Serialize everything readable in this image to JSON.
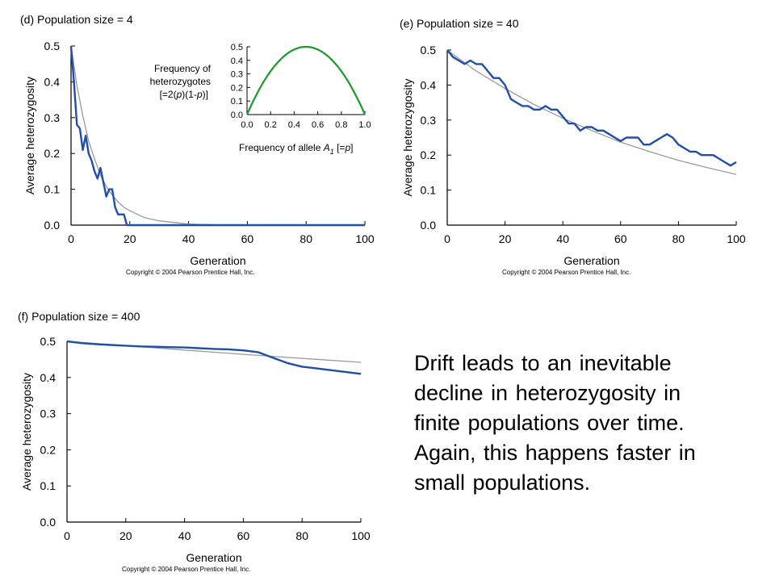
{
  "colors": {
    "sim_line": "#1f4fa8",
    "expected_curve": "#9a9a9a",
    "inset_curve": "#1a9a2a",
    "axis": "#000000"
  },
  "caption": {
    "lines": [
      "Drift leads to an inevitable",
      "decline in heterozygosity in",
      "finite populations over time.",
      "Again, this happens faster in",
      "small populations."
    ]
  },
  "chart_data": [
    {
      "id": "d",
      "type": "line",
      "title": "(d) Population size = 4",
      "xlabel": "Generation",
      "ylabel": "Average heterozygosity",
      "copyright": "Copyright © 2004 Pearson Prentice Hall, Inc.",
      "xlim": [
        0,
        100
      ],
      "ylim": [
        0,
        0.5
      ],
      "xticks": [
        "0",
        "20",
        "40",
        "60",
        "80",
        "100"
      ],
      "yticks": [
        "0.0",
        "0.1",
        "0.2",
        "0.3",
        "0.4",
        "0.5"
      ],
      "series": [
        {
          "role": "expected",
          "x": [
            0,
            2,
            4,
            6,
            8,
            10,
            12,
            14,
            16,
            18,
            20,
            25,
            30,
            40,
            50,
            60,
            80,
            100
          ],
          "y": [
            0.5,
            0.389,
            0.305,
            0.235,
            0.185,
            0.14,
            0.108,
            0.084,
            0.065,
            0.05,
            0.04,
            0.021,
            0.012,
            0.003,
            0.001,
            0.0,
            0.0,
            0.0
          ]
        },
        {
          "role": "simulated",
          "x": [
            0,
            1,
            2,
            3,
            4,
            5,
            6,
            7,
            8,
            9,
            10,
            11,
            12,
            13,
            14,
            15,
            16,
            17,
            18,
            19,
            20,
            100
          ],
          "y": [
            0.5,
            0.4,
            0.28,
            0.27,
            0.21,
            0.25,
            0.2,
            0.18,
            0.15,
            0.13,
            0.16,
            0.12,
            0.08,
            0.1,
            0.1,
            0.05,
            0.03,
            0.03,
            0.03,
            0.0,
            0.0,
            0.0
          ]
        }
      ],
      "inset": {
        "type": "line",
        "ylabel": "Frequency of heterozygotes",
        "formula_parts": [
          "[=2(",
          "p",
          ")(1-",
          "p",
          ")]"
        ],
        "xlabel_text": "Frequency of allele ",
        "xlabel_sym": "A",
        "xlabel_sub": "1",
        "xlabel_tail_parts": [
          " [=",
          "p",
          "]"
        ],
        "xlim": [
          0,
          1
        ],
        "ylim": [
          0,
          0.5
        ],
        "xticks": [
          "0.0",
          "0.2",
          "0.4",
          "0.6",
          "0.8",
          "1.0"
        ],
        "yticks": [
          "0.0",
          "0.1",
          "0.2",
          "0.3",
          "0.4",
          "0.5"
        ]
      }
    },
    {
      "id": "e",
      "type": "line",
      "title": "(e) Population size = 40",
      "xlabel": "Generation",
      "ylabel": "Average heterozygosity",
      "copyright": "Copyright © 2004 Pearson Prentice Hall, Inc.",
      "xlim": [
        0,
        100
      ],
      "ylim": [
        0,
        0.5
      ],
      "xticks": [
        "0",
        "20",
        "40",
        "60",
        "80",
        "100"
      ],
      "yticks": [
        "0.0",
        "0.1",
        "0.2",
        "0.3",
        "0.4",
        "0.5"
      ],
      "series": [
        {
          "role": "expected",
          "x": [
            0,
            10,
            20,
            30,
            40,
            50,
            60,
            70,
            80,
            90,
            100
          ],
          "y": [
            0.5,
            0.44,
            0.39,
            0.345,
            0.305,
            0.27,
            0.237,
            0.21,
            0.185,
            0.164,
            0.145
          ]
        },
        {
          "role": "simulated",
          "x": [
            0,
            2,
            4,
            6,
            8,
            10,
            12,
            14,
            16,
            18,
            20,
            22,
            24,
            26,
            28,
            30,
            32,
            34,
            36,
            38,
            40,
            42,
            44,
            46,
            48,
            50,
            52,
            54,
            56,
            58,
            60,
            62,
            64,
            66,
            68,
            70,
            72,
            74,
            76,
            78,
            80,
            82,
            84,
            86,
            88,
            90,
            92,
            94,
            96,
            98,
            100
          ],
          "y": [
            0.5,
            0.48,
            0.47,
            0.46,
            0.47,
            0.46,
            0.46,
            0.44,
            0.42,
            0.42,
            0.4,
            0.36,
            0.35,
            0.34,
            0.34,
            0.33,
            0.33,
            0.34,
            0.33,
            0.33,
            0.31,
            0.29,
            0.29,
            0.27,
            0.28,
            0.28,
            0.27,
            0.27,
            0.26,
            0.25,
            0.24,
            0.25,
            0.25,
            0.25,
            0.23,
            0.23,
            0.24,
            0.25,
            0.26,
            0.25,
            0.23,
            0.22,
            0.21,
            0.21,
            0.2,
            0.2,
            0.2,
            0.19,
            0.18,
            0.17,
            0.18
          ]
        }
      ]
    },
    {
      "id": "f",
      "type": "line",
      "title": "(f) Population size = 400",
      "xlabel": "Generation",
      "ylabel": "Average heterozygosity",
      "copyright": "Copyright © 2004 Pearson Prentice Hall, Inc.",
      "xlim": [
        0,
        100
      ],
      "ylim": [
        0,
        0.5
      ],
      "xticks": [
        "0",
        "20",
        "40",
        "60",
        "80",
        "100"
      ],
      "yticks": [
        "0.0",
        "0.1",
        "0.2",
        "0.3",
        "0.4",
        "0.5"
      ],
      "series": [
        {
          "role": "expected",
          "x": [
            0,
            20,
            40,
            60,
            80,
            100
          ],
          "y": [
            0.5,
            0.488,
            0.476,
            0.464,
            0.453,
            0.442
          ]
        },
        {
          "role": "simulated",
          "x": [
            0,
            5,
            10,
            15,
            20,
            25,
            30,
            35,
            40,
            45,
            50,
            55,
            60,
            65,
            70,
            75,
            80,
            85,
            90,
            95,
            100
          ],
          "y": [
            0.5,
            0.495,
            0.492,
            0.49,
            0.488,
            0.486,
            0.485,
            0.484,
            0.483,
            0.481,
            0.479,
            0.478,
            0.475,
            0.47,
            0.455,
            0.44,
            0.43,
            0.425,
            0.42,
            0.415,
            0.41
          ]
        }
      ]
    }
  ]
}
